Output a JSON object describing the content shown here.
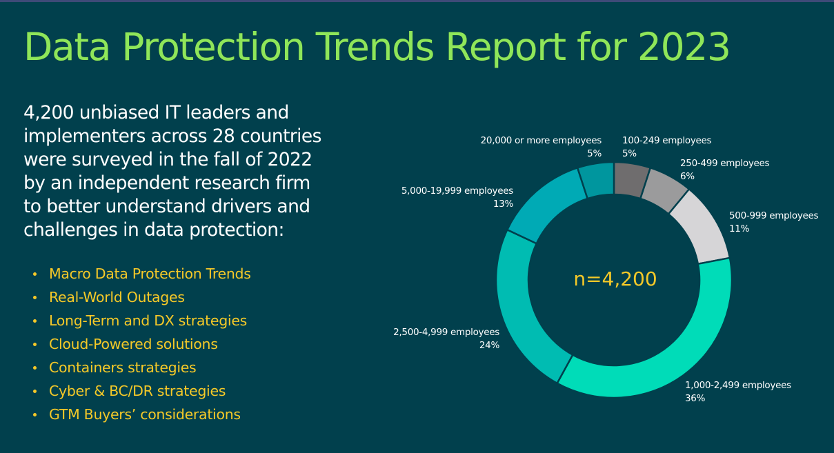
{
  "header": {
    "title": "Data Protection Trends Report for 2023"
  },
  "intro": {
    "lines": [
      "4,200 unbiased IT leaders and",
      "implementers across 28 countries",
      "were surveyed in the fall of 2022",
      "by an independent research firm",
      "to better understand drivers and",
      "challenges in data protection:"
    ]
  },
  "topics": [
    "Macro Data Protection Trends",
    "Real-World Outages",
    "Long-Term and DX strategies",
    "Cloud-Powered solutions",
    "Containers strategies",
    "Cyber & BC/DR strategies",
    "GTM Buyers’ considerations"
  ],
  "chart_data": {
    "type": "pie",
    "variant": "donut",
    "title": "",
    "center_label": "n=4,200",
    "start": "top",
    "direction": "clockwise",
    "slices": [
      {
        "label": "100-249 employees",
        "value": 5,
        "value_label": "5%",
        "color": "#6f6d6e"
      },
      {
        "label": "250-499 employees",
        "value": 6,
        "value_label": "6%",
        "color": "#9b9b9c"
      },
      {
        "label": "500-999 employees",
        "value": 11,
        "value_label": "11%",
        "color": "#d6d5d7"
      },
      {
        "label": "1,000-2,499 employees",
        "value": 36,
        "value_label": "36%",
        "color": "#00dcb8"
      },
      {
        "label": "2,500-4,999 employees",
        "value": 24,
        "value_label": "24%",
        "color": "#00bcb2"
      },
      {
        "label": "5,000-19,999 employees",
        "value": 13,
        "value_label": "13%",
        "color": "#00aab5"
      },
      {
        "label": "20,000 or more employees",
        "value": 5,
        "value_label": "5%",
        "color": "#00969e"
      }
    ],
    "legend": "none (labels beside slices)"
  }
}
